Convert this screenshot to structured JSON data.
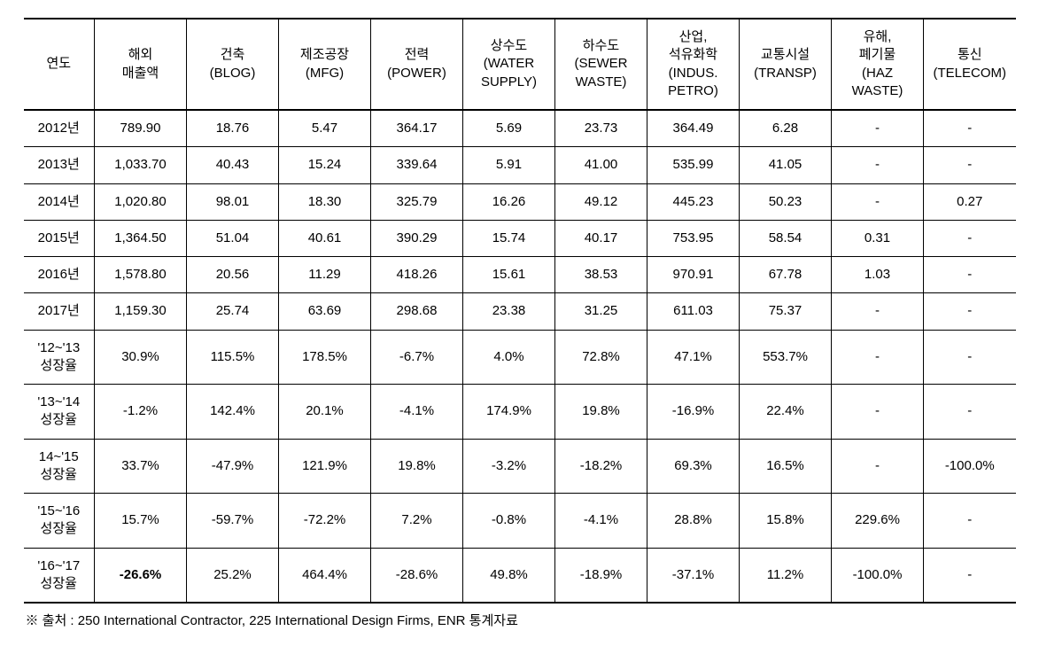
{
  "table": {
    "columns": [
      "연도",
      "해외\n매출액",
      "건축\n(BLOG)",
      "제조공장\n(MFG)",
      "전력\n(POWER)",
      "상수도\n(WATER\nSUPPLY)",
      "하수도\n(SEWER\nWASTE)",
      "산업,\n석유화학\n(INDUS.\nPETRO)",
      "교통시설\n(TRANSP)",
      "유해,\n폐기물\n(HAZ\nWASTE)",
      "통신\n(TELECOM)"
    ],
    "rows": [
      {
        "label": "2012년",
        "cells": [
          "789.90",
          "18.76",
          "5.47",
          "364.17",
          "5.69",
          "23.73",
          "364.49",
          "6.28",
          "-",
          "-"
        ],
        "bold_indices": []
      },
      {
        "label": "2013년",
        "cells": [
          "1,033.70",
          "40.43",
          "15.24",
          "339.64",
          "5.91",
          "41.00",
          "535.99",
          "41.05",
          "-",
          "-"
        ],
        "bold_indices": []
      },
      {
        "label": "2014년",
        "cells": [
          "1,020.80",
          "98.01",
          "18.30",
          "325.79",
          "16.26",
          "49.12",
          "445.23",
          "50.23",
          "-",
          "0.27"
        ],
        "bold_indices": []
      },
      {
        "label": "2015년",
        "cells": [
          "1,364.50",
          "51.04",
          "40.61",
          "390.29",
          "15.74",
          "40.17",
          "753.95",
          "58.54",
          "0.31",
          "-"
        ],
        "bold_indices": []
      },
      {
        "label": "2016년",
        "cells": [
          "1,578.80",
          "20.56",
          "11.29",
          "418.26",
          "15.61",
          "38.53",
          "970.91",
          "67.78",
          "1.03",
          "-"
        ],
        "bold_indices": []
      },
      {
        "label": "2017년",
        "cells": [
          "1,159.30",
          "25.74",
          "63.69",
          "298.68",
          "23.38",
          "31.25",
          "611.03",
          "75.37",
          "-",
          "-"
        ],
        "bold_indices": []
      },
      {
        "label": "'12~'13\n성장율",
        "cells": [
          "30.9%",
          "115.5%",
          "178.5%",
          "-6.7%",
          "4.0%",
          "72.8%",
          "47.1%",
          "553.7%",
          "-",
          "-"
        ],
        "bold_indices": []
      },
      {
        "label": "'13~'14\n성장율",
        "cells": [
          "-1.2%",
          "142.4%",
          "20.1%",
          "-4.1%",
          "174.9%",
          "19.8%",
          "-16.9%",
          "22.4%",
          "-",
          "-"
        ],
        "bold_indices": []
      },
      {
        "label": "14~'15\n성장율",
        "cells": [
          "33.7%",
          "-47.9%",
          "121.9%",
          "19.8%",
          "-3.2%",
          "-18.2%",
          "69.3%",
          "16.5%",
          "-",
          "-100.0%"
        ],
        "bold_indices": []
      },
      {
        "label": "'15~'16\n성장율",
        "cells": [
          "15.7%",
          "-59.7%",
          "-72.2%",
          "7.2%",
          "-0.8%",
          "-4.1%",
          "28.8%",
          "15.8%",
          "229.6%",
          "-"
        ],
        "bold_indices": []
      },
      {
        "label": "'16~'17\n성장율",
        "cells": [
          "-26.6%",
          "25.2%",
          "464.4%",
          "-28.6%",
          "49.8%",
          "-18.9%",
          "-37.1%",
          "11.2%",
          "-100.0%",
          "-"
        ],
        "bold_indices": [
          0
        ]
      }
    ]
  },
  "source": "※ 출처 : 250 International Contractor, 225 International Design Firms, ENR 통계자료"
}
